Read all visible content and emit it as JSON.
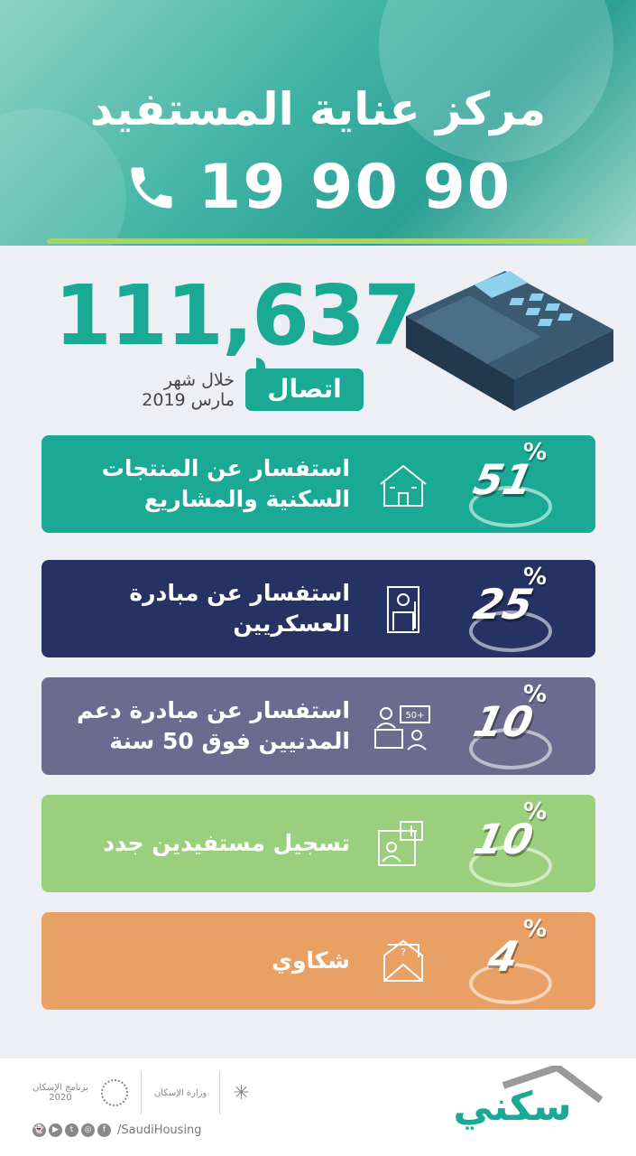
{
  "header": {
    "title": "مركز عناية المستفيد",
    "phone_number": "19 90 90",
    "phone_icon": "phone-icon"
  },
  "summary": {
    "total_calls": "111,637",
    "calls_label": "اتصال",
    "period_line1": "خلال شهر",
    "period_line2": "مارس 2019"
  },
  "colors": {
    "teal": "#1aa995",
    "navy": "#273264",
    "purple": "#6d6a8f",
    "green": "#9acf7d",
    "orange": "#e8a064",
    "accent_line": "#a8d26a"
  },
  "categories": [
    {
      "label": "استفسار عن المنتجات السكنية والمشاريع",
      "percent": 51,
      "percent_text": "51",
      "icon": "house-icon",
      "color": "#1aa995"
    },
    {
      "label": "استفسار عن مبادرة العسكريين",
      "percent": 25,
      "percent_text": "25",
      "icon": "soldier-icon",
      "color": "#273264"
    },
    {
      "label": "استفسار عن مبادرة دعم المدنيين فوق 50 سنة",
      "percent": 10,
      "percent_text": "10",
      "icon": "elderly-support-icon",
      "color": "#6d6a8f",
      "icon_badge": "50+"
    },
    {
      "label": "تسجيل مستفيدين جدد",
      "percent": 10,
      "percent_text": "10",
      "icon": "register-user-icon",
      "color": "#9acf7d"
    },
    {
      "label": "شكاوي",
      "percent": 4,
      "percent_text": "4",
      "icon": "complaint-envelope-icon",
      "color": "#e8a064"
    }
  ],
  "percent_sign": "%",
  "footer": {
    "brand": "سكني",
    "social_handle": "/SaudiHousing",
    "program_name": "برنامج الإسكان",
    "program_year": "2020",
    "ministry": "وزارة الإسكان",
    "social_icons": [
      "snapchat",
      "youtube",
      "twitter",
      "instagram",
      "facebook"
    ]
  }
}
